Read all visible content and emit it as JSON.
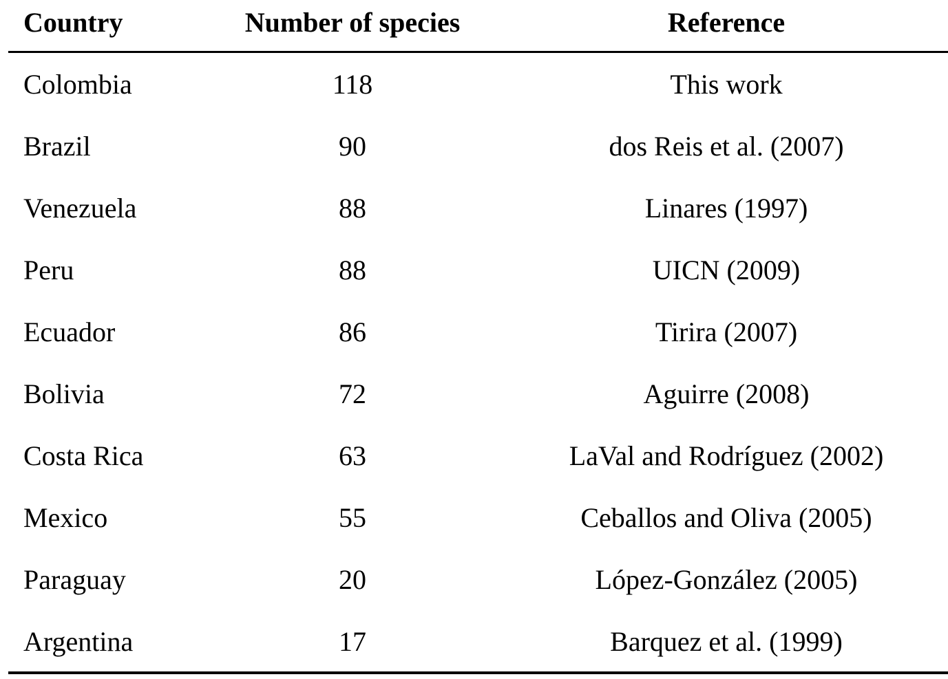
{
  "table": {
    "header": [
      "Country",
      "Number of species",
      "Reference"
    ],
    "rows": [
      [
        "Colombia",
        "118",
        "This work"
      ],
      [
        "Brazil",
        "90",
        "dos Reis et al. (2007)"
      ],
      [
        "Venezuela",
        "88",
        "Linares (1997)"
      ],
      [
        "Peru",
        "88",
        "UICN (2009)"
      ],
      [
        "Ecuador",
        "86",
        "Tirira (2007)"
      ],
      [
        "Bolivia",
        "72",
        "Aguirre (2008)"
      ],
      [
        "Costa Rica",
        "63",
        "LaVal and Rodríguez (2002)"
      ],
      [
        "Mexico",
        "55",
        "Ceballos and Oliva (2005)"
      ],
      [
        "Paraguay",
        "20",
        "López-González (2005)"
      ],
      [
        "Argentina",
        "17",
        "Barquez et al. (1999)"
      ]
    ]
  }
}
